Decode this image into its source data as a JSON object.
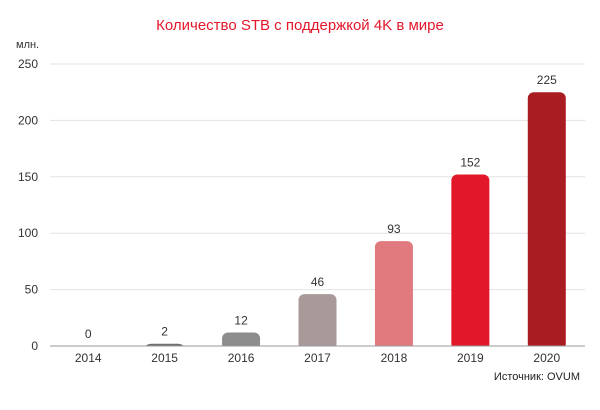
{
  "chart_data": {
    "type": "bar",
    "title": "Количество STB с поддержкой 4K в мире",
    "ylabel": "млн.",
    "xlabel": "",
    "categories": [
      "2014",
      "2015",
      "2016",
      "2017",
      "2018",
      "2019",
      "2020"
    ],
    "values": [
      0,
      2,
      12,
      46,
      93,
      152,
      225
    ],
    "data_labels": [
      "0",
      "2",
      "12",
      "46",
      "93",
      "152",
      "225"
    ],
    "bar_colors": [
      "#999999",
      "#6f6f6f",
      "#8c8c8c",
      "#a99a9a",
      "#e07a7f",
      "#e3172a",
      "#a81c22"
    ],
    "ylim": [
      0,
      250
    ],
    "yticks": [
      0,
      50,
      100,
      150,
      200,
      250
    ],
    "grid": true,
    "source": "Источник: OVUM"
  },
  "colors": {
    "title": "#e3172a",
    "grid": "#e2e2e2",
    "axis": "#999999"
  }
}
